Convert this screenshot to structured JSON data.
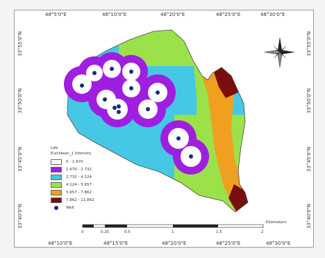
{
  "map": {
    "top_lon_labels": [
      "48°5'0\"E",
      "48°10'0\"E",
      "48°20'0\"E",
      "48°25'0\"E",
      "48°30'0\"E"
    ],
    "bottom_lon_labels": [
      "48°10'0\"E",
      "48°15'0\"E",
      "48°20'0\"E",
      "48°25'0\"E",
      "48°30'0\"E"
    ],
    "left_lat_labels": [
      "33°55'0\"N",
      "33°50'0\"N",
      "33°45'0\"N",
      "33°40'0\"N"
    ],
    "right_lat_labels": [
      "33°55'0\"N",
      "33°50'0\"N",
      "33°45'0\"N",
      "33°40'0\"N"
    ],
    "north_arrow_icon": "compass-rose-icon"
  },
  "legend": {
    "title": "Lab.",
    "subtitle": "Euclidean_1 Intensity",
    "classes": [
      {
        "label": "0 - 1.670",
        "color": "#ffffff"
      },
      {
        "label": "1.670 - 2.732",
        "color": "#9e1fe0"
      },
      {
        "label": "2.732 - 4.124",
        "color": "#45c8e6"
      },
      {
        "label": "4.124 - 5.657",
        "color": "#9be24a"
      },
      {
        "label": "5.657 - 7.862",
        "color": "#f0a020"
      },
      {
        "label": "7.862 - 11.862",
        "color": "#7a0e0e"
      }
    ],
    "wells_label": "Well"
  },
  "scale_bar": {
    "labels": [
      "0",
      "0.25",
      "0.5",
      "1",
      "1.5",
      "2"
    ],
    "unit": "Kilometers"
  }
}
